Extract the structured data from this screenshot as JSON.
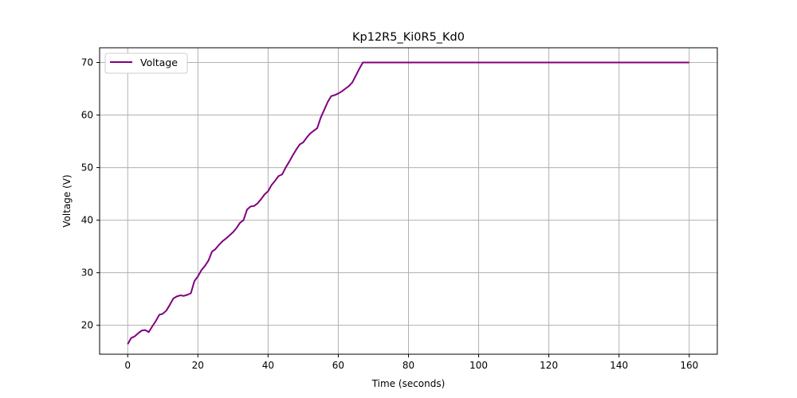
{
  "chart_data": {
    "type": "line",
    "title": "Kp12R5_Ki0R5_Kd0",
    "xlabel": "Time (seconds)",
    "ylabel": "Voltage (V)",
    "xlim": [
      -8,
      168
    ],
    "ylim": [
      14.5,
      72.8
    ],
    "xticks": [
      0,
      20,
      40,
      60,
      80,
      100,
      120,
      140,
      160
    ],
    "yticks": [
      20,
      30,
      40,
      50,
      60,
      70
    ],
    "grid": true,
    "legend": {
      "position": "top-left",
      "entries": [
        "Voltage"
      ]
    },
    "series": [
      {
        "name": "Voltage",
        "color": "#800080",
        "x": [
          0,
          1,
          2,
          3,
          4,
          5,
          6,
          7,
          8,
          9,
          10,
          11,
          12,
          13,
          14,
          15,
          16,
          17,
          18,
          19,
          20,
          21,
          22,
          23,
          24,
          25,
          26,
          27,
          28,
          29,
          30,
          31,
          32,
          33,
          34,
          35,
          36,
          37,
          38,
          39,
          40,
          41,
          42,
          43,
          44,
          45,
          46,
          47,
          48,
          49,
          50,
          51,
          52,
          53,
          54,
          55,
          56,
          57,
          58,
          59,
          60,
          61,
          62,
          63,
          64,
          65,
          66,
          67,
          68,
          69,
          70,
          71,
          72,
          73,
          74,
          75,
          80,
          100,
          120,
          140,
          160
        ],
        "y": [
          16.4,
          17.6,
          17.9,
          18.5,
          19.0,
          19.1,
          18.7,
          19.8,
          20.8,
          22.0,
          22.2,
          22.8,
          23.9,
          25.1,
          25.5,
          25.7,
          25.6,
          25.8,
          26.1,
          28.4,
          29.3,
          30.5,
          31.3,
          32.3,
          34.0,
          34.5,
          35.3,
          36.0,
          36.5,
          37.1,
          37.7,
          38.5,
          39.5,
          40.0,
          42.0,
          42.6,
          42.7,
          43.2,
          44.0,
          44.9,
          45.5,
          46.7,
          47.5,
          48.4,
          48.7,
          50.0,
          51.1,
          52.3,
          53.4,
          54.4,
          54.8,
          55.7,
          56.5,
          57.0,
          57.5,
          59.5,
          61.0,
          62.5,
          63.6,
          63.8,
          64.1,
          64.5,
          65.0,
          65.5,
          66.2,
          67.5,
          68.8,
          70.0,
          70.0,
          70.0,
          70.0,
          70.0,
          70.0,
          70.0,
          70.0,
          70.0,
          70.0,
          70.0,
          70.0,
          70.0,
          70.0
        ]
      }
    ]
  }
}
